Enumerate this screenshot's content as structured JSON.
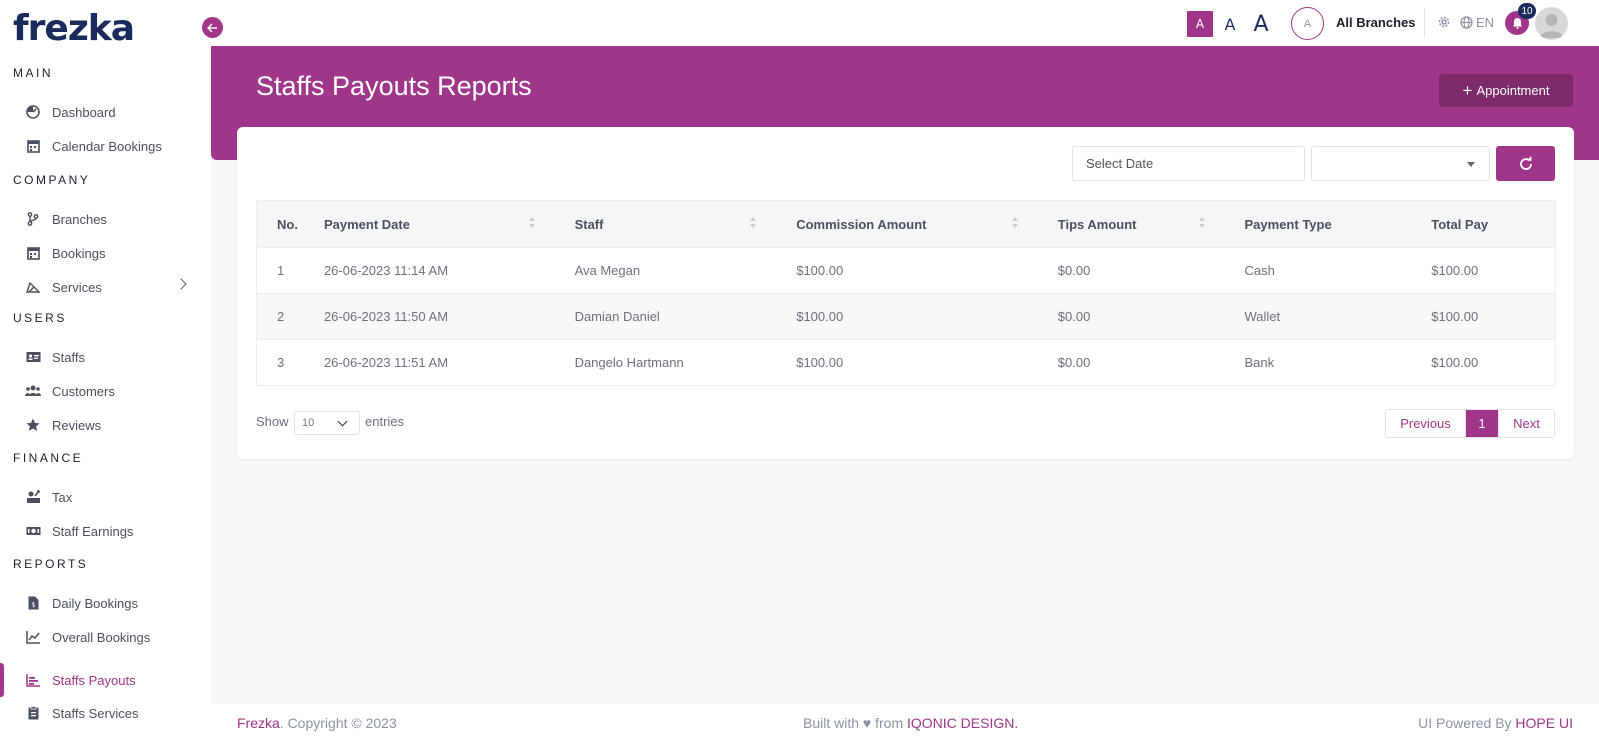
{
  "logo": "frezka",
  "sidebar": {
    "sections": [
      {
        "title": "MAIN",
        "items": [
          {
            "label": "Dashboard",
            "icon": "dashboard-icon"
          },
          {
            "label": "Calendar Bookings",
            "icon": "calendar-icon"
          }
        ]
      },
      {
        "title": "COMPANY",
        "items": [
          {
            "label": "Branches",
            "icon": "branch-icon"
          },
          {
            "label": "Bookings",
            "icon": "calendar-icon"
          },
          {
            "label": "Services",
            "icon": "scissors-icon"
          }
        ]
      },
      {
        "title": "USERS",
        "items": [
          {
            "label": "Staffs",
            "icon": "id-card-icon"
          },
          {
            "label": "Customers",
            "icon": "users-icon"
          },
          {
            "label": "Reviews",
            "icon": "star-icon"
          }
        ]
      },
      {
        "title": "FINANCE",
        "items": [
          {
            "label": "Tax",
            "icon": "tax-icon"
          },
          {
            "label": "Staff Earnings",
            "icon": "money-icon"
          }
        ]
      },
      {
        "title": "REPORTS",
        "items": [
          {
            "label": "Daily Bookings",
            "icon": "file-icon"
          },
          {
            "label": "Overall Bookings",
            "icon": "line-chart-icon"
          },
          {
            "label": "Staffs Payouts",
            "icon": "bar-chart-icon"
          },
          {
            "label": "Staffs Services",
            "icon": "clipboard-icon"
          }
        ]
      }
    ]
  },
  "topbar": {
    "font_sizes": [
      "A",
      "A",
      "A"
    ],
    "branch_initial": "A",
    "branch_label": "All Branches",
    "language": "EN",
    "notifications": "10"
  },
  "header": {
    "title": "Staffs Payouts Reports",
    "appointment_button": "Appointment"
  },
  "filters": {
    "date_placeholder": "Select Date"
  },
  "table": {
    "columns": [
      "No.",
      "Payment Date",
      "Staff",
      "Commission Amount",
      "Tips Amount",
      "Payment Type",
      "Total Pay"
    ],
    "rows": [
      [
        "1",
        "26-06-2023 11:14 AM",
        "Ava Megan",
        "$100.00",
        "$0.00",
        "Cash",
        "$100.00"
      ],
      [
        "2",
        "26-06-2023 11:50 AM",
        "Damian Daniel",
        "$100.00",
        "$0.00",
        "Wallet",
        "$100.00"
      ],
      [
        "3",
        "26-06-2023 11:51 AM",
        "Dangelo Hartmann",
        "$100.00",
        "$0.00",
        "Bank",
        "$100.00"
      ]
    ]
  },
  "pagination": {
    "show": "Show",
    "entries_value": "10",
    "entries": "entries",
    "previous": "Previous",
    "current": "1",
    "next": "Next"
  },
  "footer": {
    "brand": "Frezka",
    "copyright": ". Copyright © 2023",
    "built_with": "Built with ♥ from ",
    "iqonic": "IQONIC DESIGN.",
    "powered_by": "UI Powered By ",
    "hope": "HOPE UI"
  },
  "colors": {
    "accent": "#a0368a",
    "navy": "#1a2a5c"
  }
}
